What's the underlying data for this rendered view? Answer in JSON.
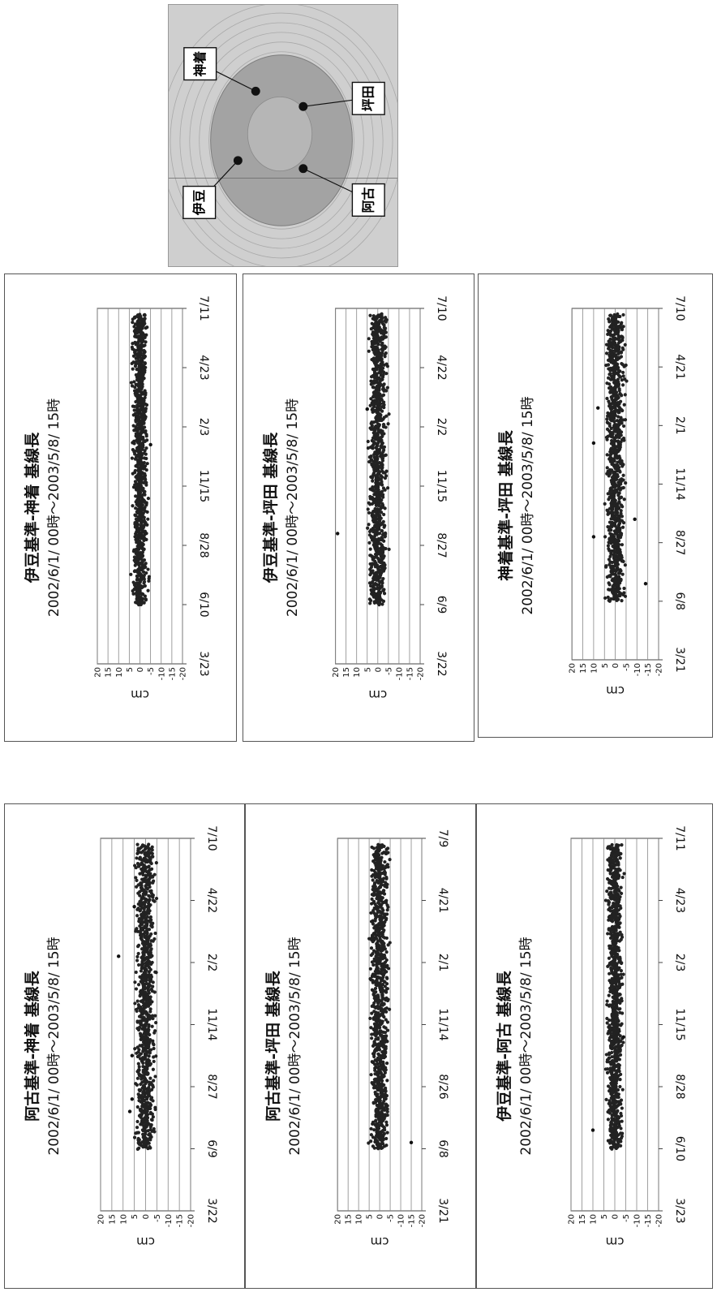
{
  "map": {
    "stations": [
      {
        "label": "神着"
      },
      {
        "label": "坪田"
      },
      {
        "label": "阿古"
      },
      {
        "label": "伊豆"
      }
    ]
  },
  "chart_data": [
    {
      "type": "scatter",
      "title": "伊豆基準-神着 基線長",
      "subtitle": "2002/6/1/ 00時～2003/5/8/ 15時",
      "ylabel": "cm",
      "ylim": [
        -20,
        20
      ],
      "yticks": [
        20,
        15,
        10,
        5,
        0,
        -5,
        -10,
        -15,
        -20
      ],
      "x_ticks": [
        "3/23",
        "6/10",
        "8/28",
        "11/15",
        "2/3",
        "4/23",
        "7/11"
      ],
      "x_start_tick": 1,
      "x_end_tick": 5.9,
      "band": [
        -2.5,
        2.5
      ],
      "outliers": [
        {
          "t": 3.7,
          "y": -5
        }
      ]
    },
    {
      "type": "scatter",
      "title": "伊豆基準-坪田 基線長",
      "subtitle": "2002/6/1/ 00時～2003/5/8/ 15時",
      "ylabel": "cm",
      "ylim": [
        -20,
        20
      ],
      "yticks": [
        20,
        15,
        10,
        5,
        0,
        -5,
        -10,
        -15,
        -20
      ],
      "x_ticks": [
        "3/22",
        "6/9",
        "8/27",
        "11/15",
        "2/2",
        "4/22",
        "7/10"
      ],
      "x_start_tick": 1,
      "x_end_tick": 5.9,
      "band": [
        -3,
        3
      ],
      "outliers": [
        {
          "t": 2.2,
          "y": 19
        },
        {
          "t": 4.3,
          "y": 5
        }
      ]
    },
    {
      "type": "scatter",
      "title": "神着基準-坪田 基線長",
      "subtitle": "2002/6/1/ 00時～2003/5/8/ 15時",
      "ylabel": "cm",
      "ylim": [
        -20,
        20
      ],
      "yticks": [
        20,
        15,
        10,
        5,
        0,
        -5,
        -10,
        -15,
        -20
      ],
      "x_ticks": [
        "3/21",
        "6/8",
        "8/27",
        "11/14",
        "2/1",
        "4/21",
        "7/10"
      ],
      "x_start_tick": 1,
      "x_end_tick": 5.9,
      "band": [
        -3,
        3
      ],
      "outliers": [
        {
          "t": 1.3,
          "y": -14
        },
        {
          "t": 2.1,
          "y": 10
        },
        {
          "t": 2.4,
          "y": -9
        },
        {
          "t": 3.7,
          "y": 10
        },
        {
          "t": 4.3,
          "y": 8
        }
      ]
    },
    {
      "type": "scatter",
      "title": "阿古基準-神着 基線長",
      "subtitle": "2002/6/1/ 00時～2003/5/8/ 15時",
      "ylabel": "cm",
      "ylim": [
        -20,
        20
      ],
      "yticks": [
        20,
        15,
        10,
        5,
        0,
        -5,
        -10,
        -15,
        -20
      ],
      "x_ticks": [
        "3/22",
        "6/9",
        "8/27",
        "11/14",
        "2/2",
        "4/22",
        "7/10"
      ],
      "x_start_tick": 1,
      "x_end_tick": 5.9,
      "band": [
        -3,
        3
      ],
      "outliers": [
        {
          "t": 1.6,
          "y": 7
        },
        {
          "t": 1.8,
          "y": 6
        },
        {
          "t": 2.5,
          "y": 6
        },
        {
          "t": 4.1,
          "y": 12
        },
        {
          "t": 4.9,
          "y": 5
        }
      ]
    },
    {
      "type": "scatter",
      "title": "阿古基準-坪田 基線長",
      "subtitle": "2002/6/1/ 00時～2003/5/8/ 15時",
      "ylabel": "cm",
      "ylim": [
        -20,
        20
      ],
      "yticks": [
        20,
        15,
        10,
        5,
        0,
        -5,
        -10,
        -15,
        -20
      ],
      "x_ticks": [
        "3/21",
        "6/8",
        "8/26",
        "11/14",
        "2/1",
        "4/21",
        "7/9"
      ],
      "x_start_tick": 1,
      "x_end_tick": 5.9,
      "band": [
        -3,
        3
      ],
      "outliers": [
        {
          "t": 1.1,
          "y": -15
        }
      ]
    },
    {
      "type": "scatter",
      "title": "伊豆基準-阿古 基線長",
      "subtitle": "2002/6/1/ 00時～2003/5/8/ 15時",
      "ylabel": "cm",
      "ylim": [
        -20,
        20
      ],
      "yticks": [
        20,
        15,
        10,
        5,
        0,
        -5,
        -10,
        -15,
        -20
      ],
      "x_ticks": [
        "3/23",
        "6/10",
        "8/28",
        "11/15",
        "2/3",
        "4/23",
        "7/11"
      ],
      "x_start_tick": 1,
      "x_end_tick": 5.9,
      "band": [
        -2.5,
        2.5
      ],
      "outliers": [
        {
          "t": 1.3,
          "y": 10
        },
        {
          "t": 2.8,
          "y": -4
        }
      ]
    }
  ]
}
